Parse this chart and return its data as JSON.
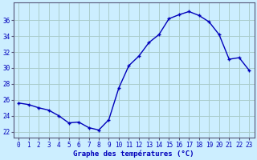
{
  "hours": [
    0,
    1,
    2,
    3,
    4,
    5,
    6,
    7,
    8,
    9,
    10,
    11,
    12,
    13,
    14,
    15,
    16,
    17,
    18,
    19,
    20,
    21,
    22,
    23
  ],
  "temps": [
    25.6,
    25.4,
    25.0,
    24.7,
    24.0,
    23.1,
    23.2,
    22.5,
    22.2,
    23.5,
    27.5,
    30.3,
    31.5,
    33.2,
    34.2,
    36.2,
    36.7,
    37.1,
    36.6,
    35.8,
    34.2,
    31.1,
    31.3,
    29.7
  ],
  "line_color": "#0000bb",
  "marker": "+",
  "marker_size": 3.5,
  "marker_lw": 1.0,
  "bg_color": "#cceeff",
  "grid_color": "#aacccc",
  "xlabel": "Graphe des températures (°C)",
  "xlabel_color": "#0000bb",
  "ylabel_ticks": [
    22,
    24,
    26,
    28,
    30,
    32,
    34,
    36
  ],
  "ylim": [
    21.2,
    38.2
  ],
  "xlim": [
    -0.5,
    23.5
  ],
  "tick_color": "#0000bb",
  "axis_color": "#555577",
  "tick_fontsize": 5.5,
  "xlabel_fontsize": 6.5,
  "linewidth": 1.0
}
